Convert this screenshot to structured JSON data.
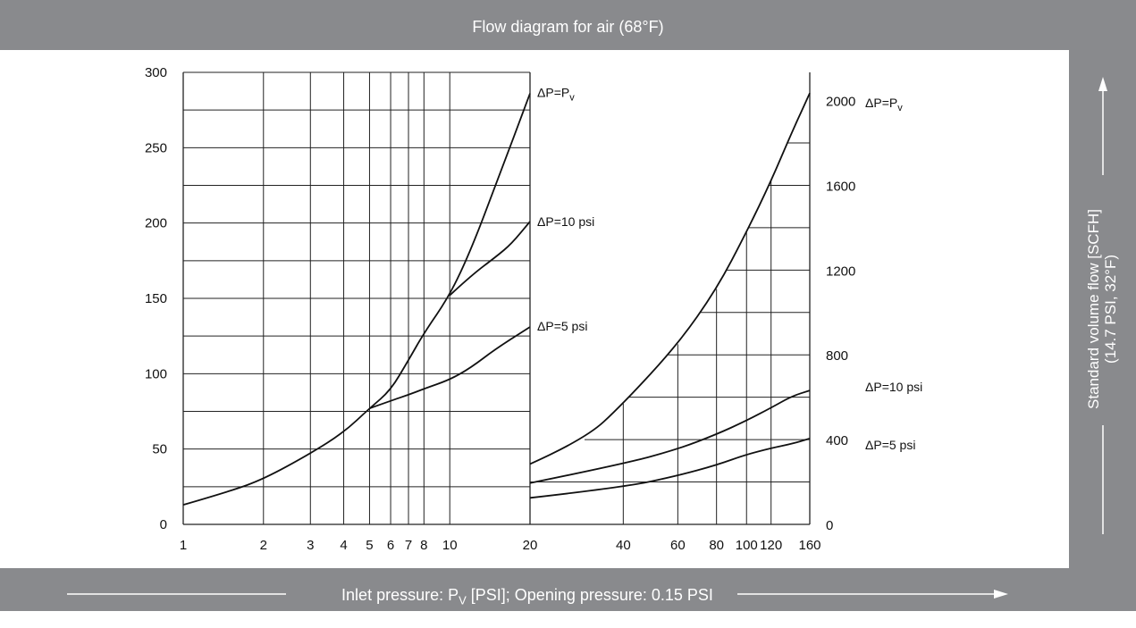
{
  "title": "Flow diagram for air (68°F)",
  "xlabel": {
    "prefix": "Inlet pressure: P",
    "sub": "V",
    "suffix": " [PSI]; Opening pressure: 0.15 PSI"
  },
  "ylabel": {
    "line1": "Standard volume flow [SCFH]",
    "line2": "(14.7 PSI, 32°F)"
  },
  "colors": {
    "band": "#898a8d",
    "grid": "#222222",
    "curve": "#111111"
  },
  "chart_data": [
    {
      "type": "line",
      "xscale": "log",
      "xlim": [
        1,
        20
      ],
      "ylim": [
        0,
        300
      ],
      "xticks": [
        1,
        2,
        3,
        4,
        5,
        6,
        7,
        8,
        10,
        20
      ],
      "yticks": [
        0,
        50,
        100,
        150,
        200,
        250,
        300
      ],
      "grid": true,
      "series": [
        {
          "name": "ΔP=Pᵥ",
          "label_main": "ΔP=P",
          "label_sub": "v",
          "x": [
            1,
            1.5,
            2,
            3,
            4,
            5,
            6,
            7,
            8,
            10,
            12,
            15,
            20
          ],
          "y": [
            13,
            22,
            30,
            47,
            61,
            77,
            89,
            109,
            127,
            152,
            182,
            227,
            286
          ]
        },
        {
          "name": "ΔP=10 psi",
          "label_main": "ΔP=10 psi",
          "label_sub": "",
          "x": [
            10,
            12,
            15,
            17,
            20
          ],
          "y": [
            152,
            165,
            178,
            186,
            201
          ]
        },
        {
          "name": "ΔP=5 psi",
          "label_main": "ΔP=5 psi",
          "label_sub": "",
          "x": [
            5,
            6,
            7,
            8,
            10,
            12,
            15,
            20
          ],
          "y": [
            77,
            82,
            86,
            90,
            96,
            104,
            117,
            131
          ]
        }
      ]
    },
    {
      "type": "line",
      "xscale": "log",
      "xlim": [
        20,
        160
      ],
      "ylim": [
        0,
        2133
      ],
      "xticks": [
        20,
        40,
        60,
        80,
        100,
        120,
        160
      ],
      "yticks": [
        0,
        400,
        800,
        1200,
        1600,
        2000
      ],
      "grid": true,
      "series": [
        {
          "name": "ΔP=Pᵥ",
          "label_main": "ΔP=P",
          "label_sub": "v",
          "x": [
            20,
            30,
            40,
            60,
            80,
            100,
            120,
            140,
            160
          ],
          "y": [
            285,
            400,
            570,
            850,
            1110,
            1380,
            1620,
            1850,
            2035
          ]
        },
        {
          "name": "ΔP=10 psi",
          "label_main": "ΔP=10 psi",
          "label_sub": "",
          "x": [
            20,
            40,
            60,
            80,
            100,
            120,
            140,
            160
          ],
          "y": [
            195,
            285,
            355,
            425,
            490,
            550,
            605,
            632
          ]
        },
        {
          "name": "ΔP=5 psi",
          "label_main": "ΔP=5 psi",
          "label_sub": "",
          "x": [
            20,
            40,
            60,
            80,
            100,
            120,
            140,
            160
          ],
          "y": [
            125,
            175,
            230,
            280,
            330,
            360,
            380,
            405
          ]
        }
      ]
    }
  ]
}
